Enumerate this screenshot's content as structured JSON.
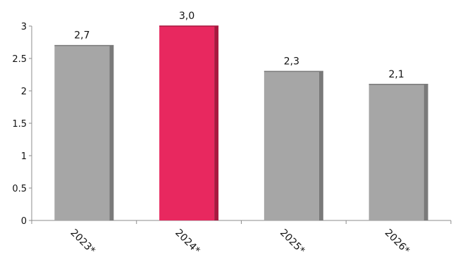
{
  "chart_data": {
    "type": "bar",
    "categories": [
      "2023*",
      "2024*",
      "2025*",
      "2026*"
    ],
    "values": [
      2.7,
      3.0,
      2.3,
      2.1
    ],
    "data_labels": [
      "2,7",
      "3,0",
      "2,3",
      "2,1"
    ],
    "highlight_index": 1,
    "title": "",
    "xlabel": "",
    "ylabel": "",
    "ylim": [
      0,
      3
    ],
    "y_ticks": [
      0,
      0.5,
      1,
      1.5,
      2,
      2.5,
      3
    ],
    "y_tick_labels": [
      "0",
      "0.5",
      "1",
      "1.5",
      "2",
      "2.5",
      "3"
    ],
    "grid": false,
    "legend": "none",
    "colors": {
      "bar_face": "#a6a6a6",
      "bar_side": "#7a7a7a",
      "highlight_face": "#e8285f",
      "highlight_side": "#a8183f",
      "axis": "#8c8c8c"
    }
  }
}
